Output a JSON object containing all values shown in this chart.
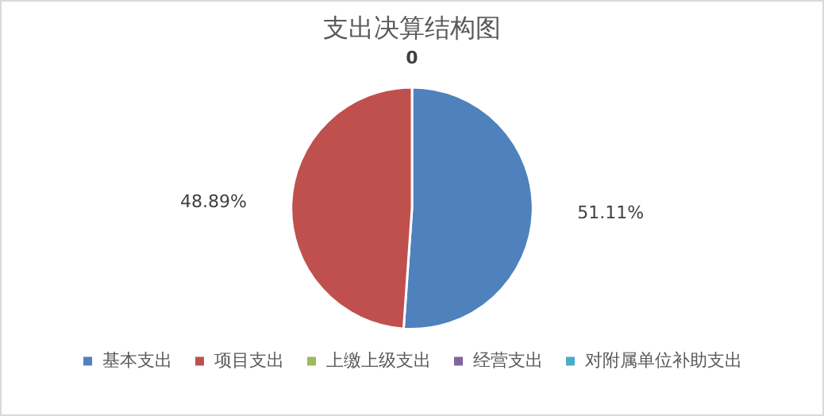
{
  "chart_data": {
    "type": "pie",
    "title": "支出决算结构图",
    "categories": [
      "基本支出",
      "项目支出",
      "上缴上级支出",
      "经营支出",
      "对附属单位补助支出"
    ],
    "values": [
      51.11,
      48.89,
      0,
      0,
      0
    ],
    "colors": [
      "#4f81bd",
      "#c0504d",
      "#9bbb59",
      "#8064a2",
      "#4bacc6"
    ],
    "value_labels": [
      "51.11%",
      "48.89%",
      "0",
      null,
      null
    ],
    "legend": "bottom"
  }
}
